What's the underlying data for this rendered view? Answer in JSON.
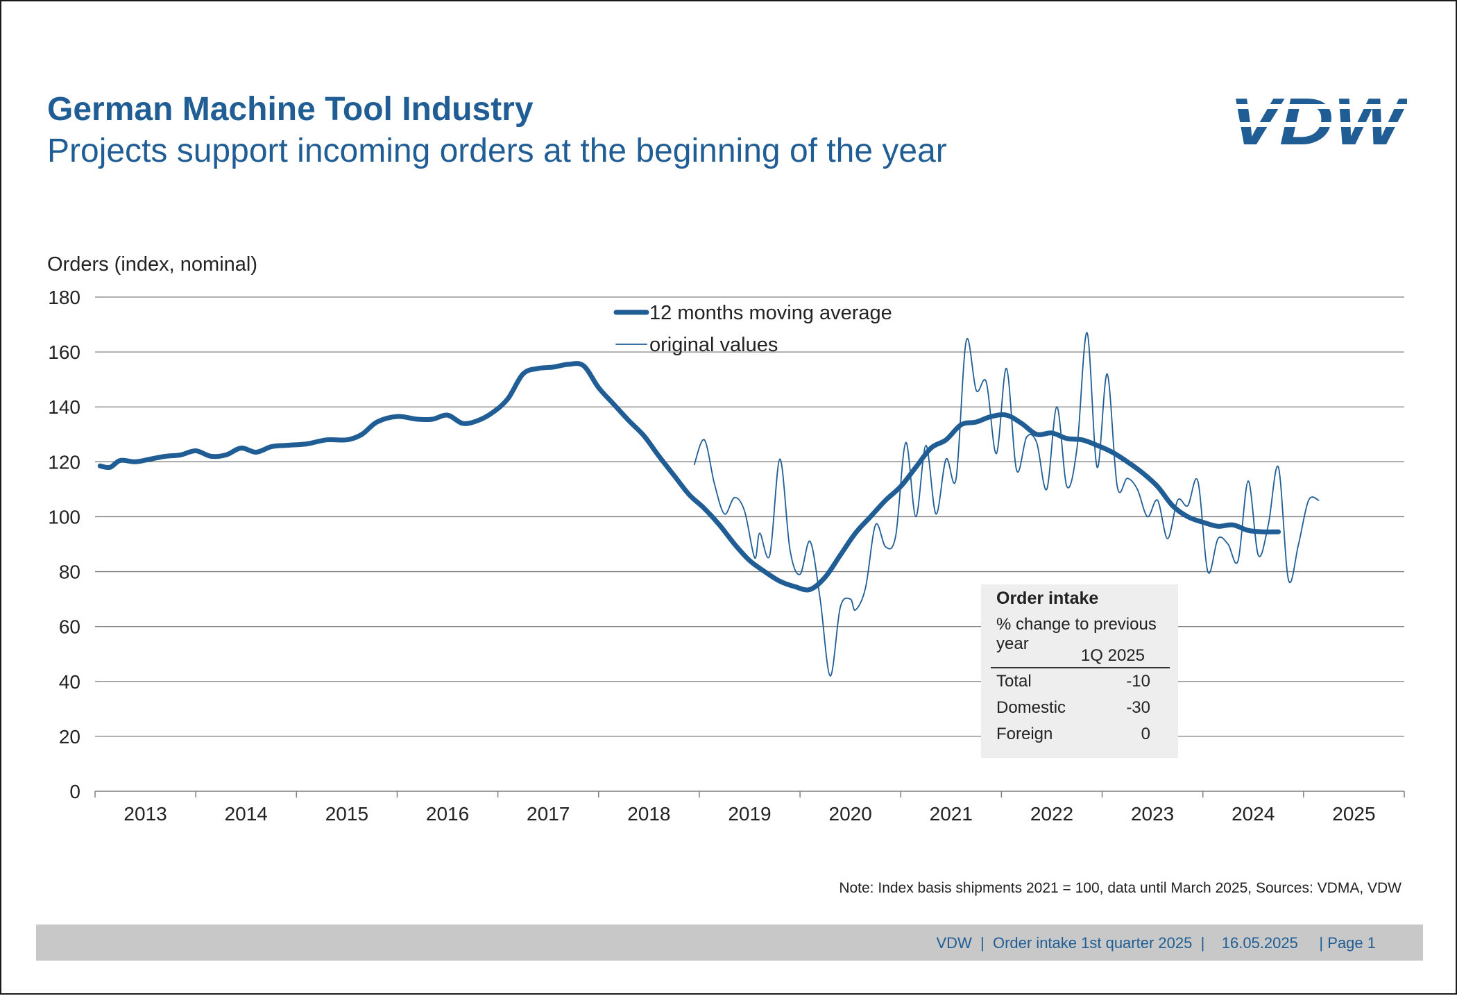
{
  "header": {
    "title": "German Machine Tool Industry",
    "subtitle": "Projects support incoming orders at the beginning of the year",
    "logo_text": "VDW"
  },
  "colors": {
    "brand": "#1f5d94",
    "grid": "#7f7f7f",
    "inset_bg": "#eeeeee",
    "footer_bg": "#c8c8c8"
  },
  "chart_data": {
    "type": "line",
    "ylabel": "Orders (index, nominal)",
    "ylim": [
      0,
      180
    ],
    "yticks": [
      "0",
      "20",
      "40",
      "60",
      "80",
      "100",
      "120",
      "140",
      "160",
      "180"
    ],
    "xlim": [
      2013.0,
      2026.0
    ],
    "year_labels": [
      "2013",
      "2014",
      "2015",
      "2016",
      "2017",
      "2018",
      "2019",
      "2020",
      "2021",
      "2022",
      "2023",
      "2024",
      "2025"
    ],
    "grid": true,
    "legend": {
      "placement": "top-center",
      "entries": [
        "12 months moving average",
        "original values"
      ]
    },
    "series": [
      {
        "name": "12 months moving average",
        "style": "thick",
        "x": [
          2013.05,
          2013.15,
          2013.25,
          2013.4,
          2013.55,
          2013.7,
          2013.85,
          2014.0,
          2014.15,
          2014.3,
          2014.45,
          2014.6,
          2014.75,
          2014.9,
          2015.1,
          2015.3,
          2015.5,
          2015.65,
          2015.8,
          2016.0,
          2016.2,
          2016.35,
          2016.5,
          2016.65,
          2016.8,
          2016.95,
          2017.1,
          2017.25,
          2017.4,
          2017.55,
          2017.7,
          2017.85,
          2018.0,
          2018.15,
          2018.3,
          2018.45,
          2018.6,
          2018.75,
          2018.9,
          2019.05,
          2019.2,
          2019.35,
          2019.5,
          2019.65,
          2019.8,
          2019.95,
          2020.1,
          2020.25,
          2020.4,
          2020.55,
          2020.7,
          2020.85,
          2021.0,
          2021.15,
          2021.3,
          2021.45,
          2021.6,
          2021.75,
          2021.9,
          2022.05,
          2022.2,
          2022.35,
          2022.5,
          2022.65,
          2022.8,
          2022.95,
          2023.1,
          2023.25,
          2023.4,
          2023.55,
          2023.7,
          2023.85,
          2024.0,
          2024.15,
          2024.3,
          2024.45,
          2024.6,
          2024.75
        ],
        "values": [
          118.5,
          118,
          120.5,
          120,
          121,
          122,
          122.5,
          124,
          122,
          122.5,
          125,
          123.5,
          125.5,
          126,
          126.5,
          128,
          128,
          130,
          134.5,
          136.5,
          135.5,
          135.5,
          137,
          134,
          135,
          138,
          143,
          152,
          154,
          154.5,
          155.5,
          155,
          147,
          141,
          135,
          129.5,
          122,
          115,
          108,
          103,
          97,
          90,
          84,
          80,
          76.5,
          74.5,
          73.5,
          78,
          86,
          94,
          100,
          106,
          111,
          118,
          125,
          128,
          133.5,
          134.5,
          136.5,
          137,
          134,
          130,
          130.5,
          128.5,
          128,
          126,
          123.5,
          120,
          116,
          111,
          104,
          100,
          98,
          96.5,
          97,
          95,
          94.5,
          94.5
        ]
      },
      {
        "name": "original values",
        "style": "thin",
        "x": [
          2018.95,
          2019.05,
          2019.15,
          2019.25,
          2019.35,
          2019.45,
          2019.55,
          2019.6,
          2019.7,
          2019.8,
          2019.9,
          2020.0,
          2020.1,
          2020.2,
          2020.3,
          2020.4,
          2020.5,
          2020.55,
          2020.65,
          2020.75,
          2020.85,
          2020.95,
          2021.05,
          2021.15,
          2021.25,
          2021.35,
          2021.45,
          2021.55,
          2021.65,
          2021.75,
          2021.85,
          2021.95,
          2022.05,
          2022.15,
          2022.25,
          2022.35,
          2022.45,
          2022.55,
          2022.65,
          2022.75,
          2022.85,
          2022.95,
          2023.05,
          2023.15,
          2023.25,
          2023.35,
          2023.45,
          2023.55,
          2023.65,
          2023.75,
          2023.85,
          2023.95,
          2024.05,
          2024.15,
          2024.25,
          2024.35,
          2024.45,
          2024.55,
          2024.65,
          2024.75,
          2024.85,
          2024.95,
          2025.05,
          2025.15
        ],
        "values": [
          119,
          128,
          112,
          101,
          107,
          102,
          85,
          94,
          86,
          121,
          88,
          79,
          91,
          70,
          42,
          67,
          70,
          66,
          74,
          97,
          89,
          93,
          127,
          100,
          126,
          101,
          121,
          114,
          164,
          146,
          149,
          123,
          154,
          117,
          129,
          127,
          110,
          140,
          111,
          125,
          167,
          118,
          152,
          111,
          114,
          110,
          100,
          106,
          92,
          106,
          104,
          113,
          80,
          92,
          90,
          84,
          113,
          86,
          97,
          118,
          77,
          90,
          106,
          106
        ]
      }
    ]
  },
  "inset_table": {
    "title": "Order intake",
    "subtitle": "% change to previous year",
    "column": "1Q 2025",
    "rows": [
      {
        "label": "Total",
        "value": "-10"
      },
      {
        "label": "Domestic",
        "value": "-30"
      },
      {
        "label": "Foreign",
        "value": "0"
      }
    ]
  },
  "note": "Note: Index basis shipments 2021 = 100, data until March 2025, Sources: VDMA, VDW",
  "footer": {
    "org": "VDW",
    "sep": "|",
    "doc": "Order intake 1st quarter 2025",
    "date": "16.05.2025",
    "page": "Page 1"
  }
}
